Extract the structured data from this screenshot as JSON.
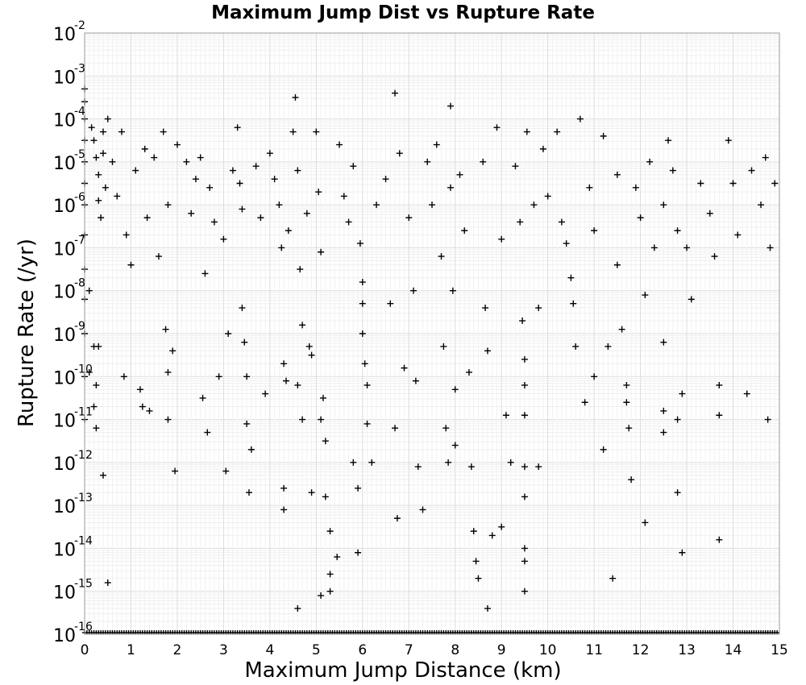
{
  "chart_data": {
    "type": "scatter",
    "title": "Maximum Jump Dist vs Rupture Rate",
    "xlabel": "Maximum Jump Distance (km)",
    "ylabel": "Rupture Rate (/yr)",
    "xlim": [
      0,
      15
    ],
    "ylim_log10": [
      -16,
      -2
    ],
    "y_scale": "log",
    "grid": true,
    "marker": "plus",
    "marker_color": "#000000",
    "x_ticks": [
      0,
      1,
      2,
      3,
      4,
      5,
      6,
      7,
      8,
      9,
      10,
      11,
      12,
      13,
      14,
      15
    ],
    "y_tick_exponents": [
      "-2",
      "-3",
      "-4",
      "-5",
      "-6",
      "-7",
      "-8",
      "-9",
      "-10",
      "-11",
      "-12",
      "-13",
      "-14",
      "-15",
      "-16"
    ],
    "y_tick_base": "10",
    "point_count_note": "",
    "points_log10": [
      [
        0.0,
        -3.3
      ],
      [
        0.0,
        -3.6
      ],
      [
        0.0,
        -4.0
      ],
      [
        0.0,
        -4.5
      ],
      [
        0.0,
        -5.0
      ],
      [
        0.0,
        -5.5
      ],
      [
        0.0,
        -6.0
      ],
      [
        0.0,
        -6.7
      ],
      [
        0.0,
        -7.5
      ],
      [
        0.0,
        -8.2
      ],
      [
        0.0,
        -9.0
      ],
      [
        0.0,
        -10.0
      ],
      [
        0.0,
        -11.0
      ],
      [
        0.15,
        -4.2
      ],
      [
        0.2,
        -4.5
      ],
      [
        0.25,
        -4.9
      ],
      [
        0.3,
        -5.3
      ],
      [
        0.3,
        -5.9
      ],
      [
        0.35,
        -6.3
      ],
      [
        0.4,
        -4.3
      ],
      [
        0.4,
        -4.8
      ],
      [
        0.45,
        -5.6
      ],
      [
        0.5,
        -4.0
      ],
      [
        0.1,
        -8.0
      ],
      [
        0.1,
        -9.9
      ],
      [
        0.2,
        -9.3
      ],
      [
        0.3,
        -9.3
      ],
      [
        0.25,
        -10.2
      ],
      [
        0.2,
        -10.7
      ],
      [
        0.25,
        -11.2
      ],
      [
        0.4,
        -12.3
      ],
      [
        0.5,
        -14.8
      ],
      [
        0.6,
        -5.0
      ],
      [
        0.7,
        -5.8
      ],
      [
        0.8,
        -4.3
      ],
      [
        0.9,
        -6.7
      ],
      [
        1.0,
        -7.4
      ],
      [
        0.85,
        -10.0
      ],
      [
        1.1,
        -5.2
      ],
      [
        1.2,
        -10.3
      ],
      [
        1.25,
        -10.7
      ],
      [
        1.3,
        -4.7
      ],
      [
        1.35,
        -6.3
      ],
      [
        1.4,
        -10.8
      ],
      [
        1.5,
        -4.9
      ],
      [
        1.6,
        -7.2
      ],
      [
        1.7,
        -4.3
      ],
      [
        1.8,
        -6.0
      ],
      [
        1.75,
        -8.9
      ],
      [
        1.8,
        -9.9
      ],
      [
        1.8,
        -11.0
      ],
      [
        1.9,
        -9.4
      ],
      [
        2.0,
        -4.6
      ],
      [
        1.95,
        -12.2
      ],
      [
        2.2,
        -5.0
      ],
      [
        2.3,
        -6.2
      ],
      [
        2.4,
        -5.4
      ],
      [
        2.5,
        -4.9
      ],
      [
        2.6,
        -7.6
      ],
      [
        2.55,
        -10.5
      ],
      [
        2.65,
        -11.3
      ],
      [
        2.7,
        -5.6
      ],
      [
        2.8,
        -6.4
      ],
      [
        2.9,
        -10.0
      ],
      [
        3.0,
        -6.8
      ],
      [
        3.1,
        -9.0
      ],
      [
        3.05,
        -12.2
      ],
      [
        3.2,
        -5.2
      ],
      [
        3.3,
        -4.2
      ],
      [
        3.35,
        -5.5
      ],
      [
        3.4,
        -6.1
      ],
      [
        3.4,
        -8.4
      ],
      [
        3.45,
        -9.2
      ],
      [
        3.5,
        -10.0
      ],
      [
        3.5,
        -11.1
      ],
      [
        3.6,
        -11.7
      ],
      [
        3.55,
        -12.7
      ],
      [
        3.7,
        -5.1
      ],
      [
        3.8,
        -6.3
      ],
      [
        3.9,
        -10.4
      ],
      [
        4.0,
        -4.8
      ],
      [
        4.1,
        -5.4
      ],
      [
        4.2,
        -6.0
      ],
      [
        4.25,
        -7.0
      ],
      [
        4.3,
        -9.7
      ],
      [
        4.35,
        -10.1
      ],
      [
        4.3,
        -12.6
      ],
      [
        4.3,
        -13.1
      ],
      [
        4.4,
        -6.6
      ],
      [
        4.5,
        -4.3
      ],
      [
        4.55,
        -3.5
      ],
      [
        4.6,
        -5.2
      ],
      [
        4.65,
        -7.5
      ],
      [
        4.7,
        -8.8
      ],
      [
        4.6,
        -10.2
      ],
      [
        4.7,
        -11.0
      ],
      [
        4.6,
        -15.4
      ],
      [
        4.8,
        -6.2
      ],
      [
        4.85,
        -9.3
      ],
      [
        4.9,
        -9.5
      ],
      [
        4.9,
        -12.7
      ],
      [
        5.0,
        -4.3
      ],
      [
        5.05,
        -5.7
      ],
      [
        5.1,
        -7.1
      ],
      [
        5.15,
        -10.5
      ],
      [
        5.1,
        -11.0
      ],
      [
        5.1,
        -15.1
      ],
      [
        5.2,
        -11.5
      ],
      [
        5.2,
        -12.8
      ],
      [
        5.3,
        -13.6
      ],
      [
        5.3,
        -14.6
      ],
      [
        5.3,
        -15.0
      ],
      [
        5.45,
        -14.2
      ],
      [
        5.5,
        -4.6
      ],
      [
        5.6,
        -5.8
      ],
      [
        5.7,
        -6.4
      ],
      [
        5.8,
        -5.1
      ],
      [
        5.8,
        -12.0
      ],
      [
        5.9,
        -12.6
      ],
      [
        5.9,
        -14.1
      ],
      [
        5.95,
        -6.9
      ],
      [
        6.0,
        -7.8
      ],
      [
        6.0,
        -8.3
      ],
      [
        6.0,
        -9.0
      ],
      [
        6.05,
        -9.7
      ],
      [
        6.1,
        -10.2
      ],
      [
        6.1,
        -11.1
      ],
      [
        6.2,
        -12.0
      ],
      [
        6.3,
        -6.0
      ],
      [
        6.5,
        -5.4
      ],
      [
        6.6,
        -8.3
      ],
      [
        6.7,
        -3.4
      ],
      [
        6.7,
        -11.2
      ],
      [
        6.75,
        -13.3
      ],
      [
        6.8,
        -4.8
      ],
      [
        6.9,
        -9.8
      ],
      [
        7.0,
        -6.3
      ],
      [
        7.1,
        -8.0
      ],
      [
        7.15,
        -10.1
      ],
      [
        7.2,
        -12.1
      ],
      [
        7.3,
        -13.1
      ],
      [
        7.4,
        -5.0
      ],
      [
        7.5,
        -6.0
      ],
      [
        7.6,
        -4.6
      ],
      [
        7.7,
        -7.2
      ],
      [
        7.75,
        -9.3
      ],
      [
        7.8,
        -11.2
      ],
      [
        7.85,
        -12.0
      ],
      [
        7.9,
        -3.7
      ],
      [
        7.9,
        -5.6
      ],
      [
        7.95,
        -8.0
      ],
      [
        8.0,
        -10.3
      ],
      [
        8.0,
        -11.6
      ],
      [
        8.1,
        -5.3
      ],
      [
        8.2,
        -6.6
      ],
      [
        8.3,
        -9.9
      ],
      [
        8.35,
        -12.1
      ],
      [
        8.4,
        -13.6
      ],
      [
        8.45,
        -14.3
      ],
      [
        8.5,
        -14.7
      ],
      [
        8.6,
        -5.0
      ],
      [
        8.65,
        -8.4
      ],
      [
        8.7,
        -9.4
      ],
      [
        8.7,
        -15.4
      ],
      [
        8.8,
        -13.7
      ],
      [
        8.9,
        -4.2
      ],
      [
        9.0,
        -6.8
      ],
      [
        9.0,
        -13.5
      ],
      [
        9.1,
        -10.9
      ],
      [
        9.2,
        -12.0
      ],
      [
        9.3,
        -5.1
      ],
      [
        9.4,
        -6.4
      ],
      [
        9.45,
        -8.7
      ],
      [
        9.5,
        -9.6
      ],
      [
        9.5,
        -10.2
      ],
      [
        9.5,
        -10.9
      ],
      [
        9.5,
        -12.1
      ],
      [
        9.5,
        -12.8
      ],
      [
        9.5,
        -14.0
      ],
      [
        9.5,
        -14.3
      ],
      [
        9.5,
        -15.0
      ],
      [
        9.55,
        -4.3
      ],
      [
        9.7,
        -6.0
      ],
      [
        9.8,
        -8.4
      ],
      [
        9.8,
        -12.1
      ],
      [
        9.9,
        -4.7
      ],
      [
        10.0,
        -5.8
      ],
      [
        10.2,
        -4.3
      ],
      [
        10.3,
        -6.4
      ],
      [
        10.4,
        -6.9
      ],
      [
        10.5,
        -7.7
      ],
      [
        10.55,
        -8.3
      ],
      [
        10.6,
        -9.3
      ],
      [
        10.7,
        -4.0
      ],
      [
        10.8,
        -10.6
      ],
      [
        10.9,
        -5.6
      ],
      [
        11.0,
        -6.6
      ],
      [
        11.0,
        -10.0
      ],
      [
        11.2,
        -4.4
      ],
      [
        11.3,
        -9.3
      ],
      [
        11.2,
        -11.7
      ],
      [
        11.4,
        -14.7
      ],
      [
        11.5,
        -5.3
      ],
      [
        11.5,
        -7.4
      ],
      [
        11.6,
        -8.9
      ],
      [
        11.7,
        -10.2
      ],
      [
        11.7,
        -10.6
      ],
      [
        11.75,
        -11.2
      ],
      [
        11.8,
        -12.4
      ],
      [
        11.9,
        -5.6
      ],
      [
        12.0,
        -6.3
      ],
      [
        12.1,
        -8.1
      ],
      [
        12.1,
        -13.4
      ],
      [
        12.2,
        -5.0
      ],
      [
        12.3,
        -7.0
      ],
      [
        12.5,
        -6.0
      ],
      [
        12.5,
        -9.2
      ],
      [
        12.5,
        -10.8
      ],
      [
        12.5,
        -11.3
      ],
      [
        12.6,
        -4.5
      ],
      [
        12.7,
        -5.2
      ],
      [
        12.8,
        -6.6
      ],
      [
        12.8,
        -11.0
      ],
      [
        12.8,
        -12.7
      ],
      [
        12.9,
        -10.4
      ],
      [
        12.9,
        -14.1
      ],
      [
        13.0,
        -7.0
      ],
      [
        13.1,
        -8.2
      ],
      [
        13.3,
        -5.5
      ],
      [
        13.5,
        -6.2
      ],
      [
        13.6,
        -7.2
      ],
      [
        13.7,
        -10.2
      ],
      [
        13.7,
        -10.9
      ],
      [
        13.7,
        -13.8
      ],
      [
        13.9,
        -4.5
      ],
      [
        14.0,
        -5.5
      ],
      [
        14.1,
        -6.7
      ],
      [
        14.3,
        -10.4
      ],
      [
        14.4,
        -5.2
      ],
      [
        14.6,
        -6.0
      ],
      [
        14.7,
        -4.9
      ],
      [
        14.75,
        -11.0
      ],
      [
        14.8,
        -7.0
      ],
      [
        14.9,
        -5.5
      ]
    ]
  }
}
